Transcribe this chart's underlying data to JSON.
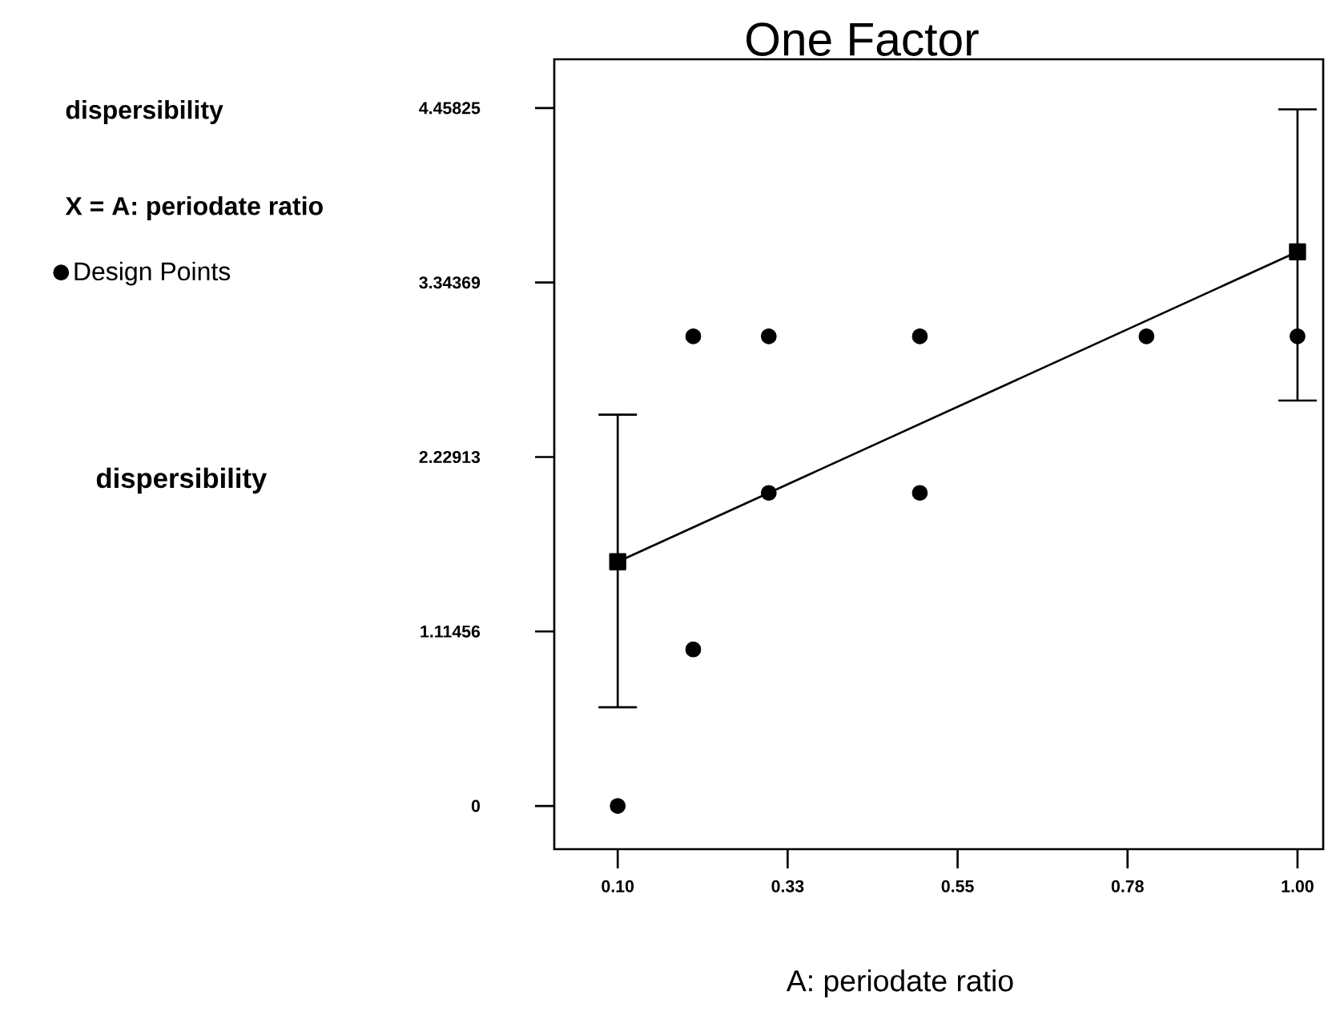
{
  "chart_data": {
    "type": "scatter",
    "title": "One Factor",
    "xlabel": "A: periodate ratio",
    "annotations": [
      "dispersibility",
      "X = A: periodate ratio",
      "dispersibility"
    ],
    "xlim": [
      0.016,
      1.034
    ],
    "ylim": [
      -0.276,
      4.77
    ],
    "xticks": [
      {
        "value": 0.1,
        "label": "0.10"
      },
      {
        "value": 0.325,
        "label": "0.33"
      },
      {
        "value": 0.55,
        "label": "0.55"
      },
      {
        "value": 0.775,
        "label": "0.78"
      },
      {
        "value": 1.0,
        "label": "1.00"
      }
    ],
    "yticks": [
      0,
      1.11456,
      2.22913,
      3.34369,
      4.45825
    ],
    "legend": "top left",
    "grid": false,
    "series": [
      {
        "name": "Design Points",
        "marker": "circle",
        "color": "#000000",
        "x": [
          0.1,
          0.2,
          0.2,
          0.3,
          0.3,
          0.5,
          0.5,
          0.8,
          1.0
        ],
        "values": [
          0,
          1,
          3,
          2,
          3,
          2,
          3,
          3,
          3
        ]
      },
      {
        "type": "line",
        "marker": "square",
        "line_style": "solid",
        "color": "#000000",
        "x": [
          0.1,
          1.0
        ],
        "values": [
          1.56,
          3.54
        ],
        "errors": [
          [
            0.63,
            2.5
          ],
          [
            2.59,
            4.45
          ]
        ]
      }
    ]
  }
}
